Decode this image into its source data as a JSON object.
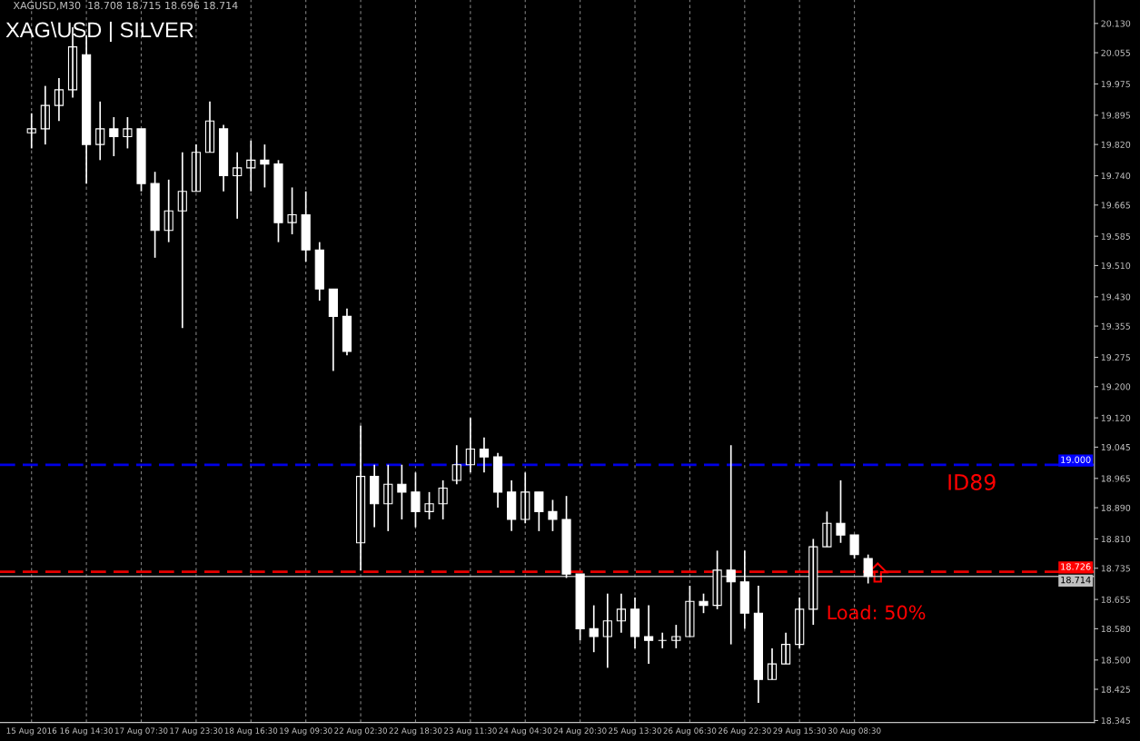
{
  "chart_data": {
    "type": "candlestick",
    "title": "XAG\\USD | SILVER",
    "annotations": [
      "XAGUSD,M30  18.708 18.715 18.696 18.714",
      "ID89",
      "Load: 50%"
    ],
    "categories": [
      "15 Aug 2016",
      null,
      null,
      null,
      "16 Aug 14:30",
      null,
      null,
      null,
      "17 Aug 07:30",
      null,
      null,
      null,
      "17 Aug 23:30",
      null,
      null,
      null,
      "18 Aug 16:30",
      null,
      null,
      null,
      "19 Aug 09:30",
      null,
      null,
      null,
      "22 Aug 02:30",
      null,
      null,
      null,
      "22 Aug 18:30",
      null,
      null,
      null,
      "23 Aug 11:30",
      null,
      null,
      null,
      "24 Aug 04:30",
      null,
      null,
      null,
      "24 Aug 20:30",
      null,
      null,
      null,
      "25 Aug 13:30",
      null,
      null,
      null,
      "26 Aug 06:30",
      null,
      null,
      null,
      "26 Aug 22:30",
      null,
      null,
      null,
      "29 Aug 15:30",
      null,
      null,
      null,
      "30 Aug 08:30",
      null,
      null,
      null,
      null,
      null,
      null,
      null,
      null,
      null,
      null,
      null,
      null,
      null,
      null,
      null,
      null,
      null
    ],
    "ohlc": [
      [
        19.85,
        19.9,
        19.81,
        19.86
      ],
      [
        19.86,
        19.97,
        19.82,
        19.92
      ],
      [
        19.92,
        19.99,
        19.88,
        19.96
      ],
      [
        19.96,
        20.12,
        19.94,
        20.07
      ],
      [
        20.05,
        20.1,
        19.72,
        19.82
      ],
      [
        19.82,
        19.93,
        19.78,
        19.86
      ],
      [
        19.86,
        19.89,
        19.79,
        19.84
      ],
      [
        19.84,
        19.89,
        19.81,
        19.86
      ],
      [
        19.86,
        19.86,
        19.7,
        19.72
      ],
      [
        19.72,
        19.75,
        19.53,
        19.6
      ],
      [
        19.6,
        19.73,
        19.57,
        19.65
      ],
      [
        19.65,
        19.8,
        19.35,
        19.7
      ],
      [
        19.7,
        19.82,
        19.7,
        19.8
      ],
      [
        19.8,
        19.93,
        19.8,
        19.88
      ],
      [
        19.86,
        19.87,
        19.7,
        19.74
      ],
      [
        19.74,
        19.8,
        19.63,
        19.76
      ],
      [
        19.76,
        19.83,
        19.7,
        19.78
      ],
      [
        19.78,
        19.82,
        19.71,
        19.77
      ],
      [
        19.77,
        19.78,
        19.57,
        19.62
      ],
      [
        19.62,
        19.71,
        19.59,
        19.64
      ],
      [
        19.64,
        19.7,
        19.52,
        19.55
      ],
      [
        19.55,
        19.57,
        19.42,
        19.45
      ],
      [
        19.45,
        19.45,
        19.24,
        19.38
      ],
      [
        19.38,
        19.4,
        19.28,
        19.29
      ],
      [
        18.8,
        19.1,
        18.73,
        18.97
      ],
      [
        18.97,
        19.0,
        18.84,
        18.9
      ],
      [
        18.9,
        19.0,
        18.83,
        18.95
      ],
      [
        18.95,
        19.0,
        18.86,
        18.93
      ],
      [
        18.93,
        18.98,
        18.84,
        18.88
      ],
      [
        18.88,
        18.93,
        18.86,
        18.9
      ],
      [
        18.9,
        18.96,
        18.86,
        18.94
      ],
      [
        18.96,
        19.05,
        18.95,
        19.0
      ],
      [
        19.0,
        19.12,
        18.98,
        19.04
      ],
      [
        19.04,
        19.07,
        18.98,
        19.02
      ],
      [
        19.02,
        19.03,
        18.89,
        18.93
      ],
      [
        18.93,
        18.96,
        18.83,
        18.86
      ],
      [
        18.86,
        18.98,
        18.85,
        18.93
      ],
      [
        18.93,
        18.93,
        18.83,
        18.88
      ],
      [
        18.88,
        18.91,
        18.83,
        18.86
      ],
      [
        18.86,
        18.92,
        18.71,
        18.72
      ],
      [
        18.72,
        18.72,
        18.55,
        18.58
      ],
      [
        18.58,
        18.64,
        18.52,
        18.56
      ],
      [
        18.56,
        18.67,
        18.48,
        18.6
      ],
      [
        18.6,
        18.67,
        18.57,
        18.63
      ],
      [
        18.63,
        18.66,
        18.53,
        18.56
      ],
      [
        18.56,
        18.64,
        18.49,
        18.55
      ],
      [
        18.55,
        18.57,
        18.53,
        18.55
      ],
      [
        18.55,
        18.59,
        18.53,
        18.56
      ],
      [
        18.56,
        18.69,
        18.56,
        18.65
      ],
      [
        18.65,
        18.67,
        18.62,
        18.64
      ],
      [
        18.64,
        18.78,
        18.63,
        18.73
      ],
      [
        18.73,
        19.05,
        18.54,
        18.7
      ],
      [
        18.7,
        18.78,
        18.58,
        18.62
      ],
      [
        18.62,
        18.69,
        18.39,
        18.45
      ],
      [
        18.45,
        18.53,
        18.45,
        18.49
      ],
      [
        18.49,
        18.57,
        18.49,
        18.54
      ],
      [
        18.54,
        18.66,
        18.53,
        18.63
      ],
      [
        18.63,
        18.81,
        18.59,
        18.79
      ],
      [
        18.79,
        18.88,
        18.79,
        18.85
      ],
      [
        18.85,
        18.96,
        18.8,
        18.82
      ],
      [
        18.82,
        18.82,
        18.76,
        18.77
      ],
      [
        18.76,
        18.77,
        18.696,
        18.714
      ],
      null,
      null,
      null,
      null,
      null,
      null,
      null,
      null,
      null,
      null,
      null,
      null,
      null,
      null,
      null,
      null
    ],
    "color": "#ffffff",
    "ylim": [
      18.34,
      20.19
    ],
    "yticks": [
      18.345,
      18.425,
      {
        "value": 18.5,
        "label": "18.500"
      },
      {
        "value": 18.58,
        "label": "18.580"
      },
      18.655,
      18.735,
      {
        "value": 18.81,
        "label": "18.810"
      },
      {
        "value": 18.89,
        "label": "18.890"
      },
      18.965,
      19.045,
      {
        "value": 19.12,
        "label": "19.120"
      },
      {
        "value": 19.2,
        "label": "19.200"
      },
      19.275,
      19.355,
      {
        "value": 19.43,
        "label": "19.430"
      },
      {
        "value": 19.51,
        "label": "19.510"
      },
      19.585,
      19.665,
      {
        "value": 19.74,
        "label": "19.740"
      },
      {
        "value": 19.82,
        "label": "19.820"
      },
      19.895,
      19.975,
      20.055,
      {
        "value": 20.13,
        "label": "20.130"
      }
    ],
    "ref_lines": [
      {
        "axis": "y",
        "value": 19.0,
        "label": "19.000",
        "color": "#0000ff",
        "line_style": "dashed"
      },
      {
        "axis": "y",
        "value": 18.726,
        "label": "18.726",
        "color": "#ff0000",
        "line_style": "dashed"
      },
      {
        "axis": "y",
        "value": 18.714,
        "label": "18.714",
        "color": "#c0c0c0",
        "line_style": "solid"
      }
    ],
    "grid": "x"
  }
}
